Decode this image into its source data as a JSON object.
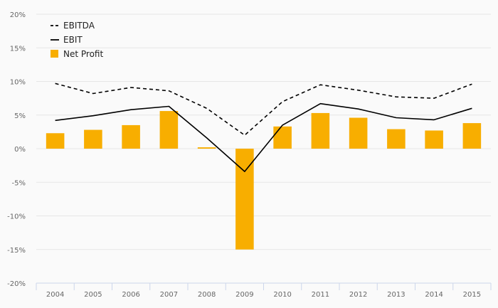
{
  "chart_data": {
    "type": "bar",
    "categories": [
      "2004",
      "2005",
      "2006",
      "2007",
      "2008",
      "2009",
      "2010",
      "2011",
      "2012",
      "2013",
      "2014",
      "2015"
    ],
    "ylim": [
      -20,
      20
    ],
    "y_ticks": [
      "20%",
      "15%",
      "10%",
      "5%",
      "0%",
      "-5%",
      "-10%",
      "-15%",
      "-20%"
    ],
    "y_tick_values": [
      20,
      15,
      10,
      5,
      0,
      -5,
      -10,
      -15,
      -20
    ],
    "unit": "%",
    "grid": true,
    "legend_position": "top-left",
    "series": [
      {
        "name": "EBITDA",
        "kind": "line",
        "style": "dashed",
        "color": "#000000",
        "values": [
          9.7,
          8.2,
          9.1,
          8.6,
          6.0,
          2.0,
          7.0,
          9.5,
          8.7,
          7.7,
          7.5,
          9.6
        ]
      },
      {
        "name": "EBIT",
        "kind": "line",
        "style": "solid",
        "color": "#000000",
        "values": [
          4.2,
          4.9,
          5.8,
          6.3,
          1.6,
          -3.4,
          3.5,
          6.7,
          5.9,
          4.6,
          4.3,
          6.0
        ]
      },
      {
        "name": "Net Profit",
        "kind": "bar",
        "color": "#f8ae00",
        "values": [
          2.3,
          2.8,
          3.5,
          5.6,
          0.2,
          -15.0,
          3.3,
          5.3,
          4.6,
          2.9,
          2.7,
          3.8
        ]
      }
    ]
  }
}
